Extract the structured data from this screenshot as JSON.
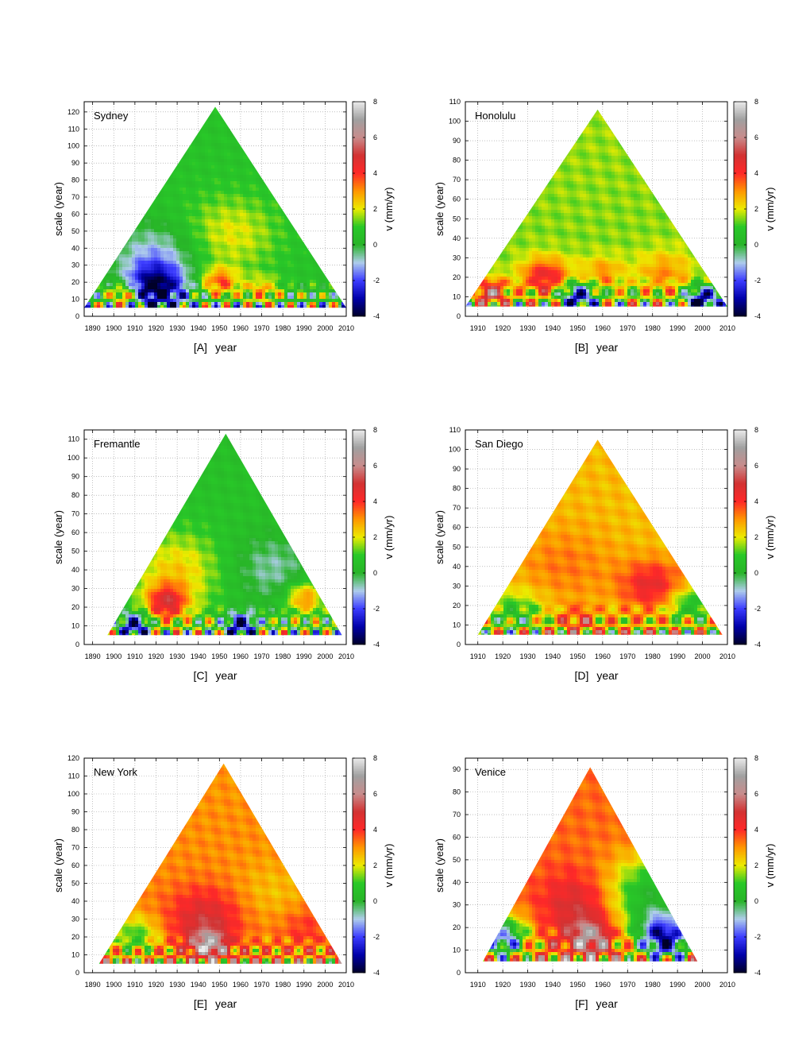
{
  "chart_data": [
    {
      "type": "heatmap",
      "panel_label": "[A]",
      "title": "Sydney",
      "xlabel": "year",
      "ylabel": "scale (year)",
      "colorbar_label": "v (mm/yr)",
      "xlim": [
        1886,
        2010
      ],
      "ylim": [
        0,
        126
      ],
      "xticks": [
        1890,
        1900,
        1910,
        1920,
        1930,
        1940,
        1950,
        1960,
        1970,
        1980,
        1990,
        2000,
        2010
      ],
      "yticks": [
        0,
        10,
        20,
        30,
        40,
        50,
        60,
        70,
        80,
        90,
        100,
        110,
        120
      ],
      "colorbar_ticks": [
        -4,
        -2,
        0,
        2,
        4,
        6,
        8
      ],
      "triangle": {
        "start_year": 1886,
        "end_year": 2010,
        "apex_year": 1948,
        "apex_scale": 123,
        "base_scale": 5
      },
      "field": {
        "base_v": 0.6,
        "upper_v": 0.7,
        "hotspots": [
          {
            "year": 1920,
            "scale": 35,
            "v": -1.2,
            "spread": 14
          },
          {
            "year": 1920,
            "scale": 15,
            "v": -3.5,
            "spread": 10
          },
          {
            "year": 1955,
            "scale": 48,
            "v": 2.0,
            "spread": 16
          },
          {
            "year": 1950,
            "scale": 20,
            "v": 3.5,
            "spread": 6
          },
          {
            "year": 1905,
            "scale": 12,
            "v": 4.0,
            "spread": 5
          },
          {
            "year": 1970,
            "scale": 15,
            "v": 2.5,
            "spread": 6
          }
        ]
      }
    },
    {
      "type": "heatmap",
      "panel_label": "[B]",
      "title": "Honolulu",
      "xlabel": "year",
      "ylabel": "scale (year)",
      "colorbar_label": "v (mm/yr)",
      "xlim": [
        1905,
        2010
      ],
      "ylim": [
        0,
        110
      ],
      "xticks": [
        1910,
        1920,
        1930,
        1940,
        1950,
        1960,
        1970,
        1980,
        1990,
        2000,
        2010
      ],
      "yticks": [
        0,
        10,
        20,
        30,
        40,
        50,
        60,
        70,
        80,
        90,
        100,
        110
      ],
      "colorbar_ticks": [
        -4,
        -2,
        0,
        2,
        4,
        6,
        8
      ],
      "triangle": {
        "start_year": 1905,
        "end_year": 2010,
        "apex_year": 1958,
        "apex_scale": 106,
        "base_scale": 5
      },
      "field": {
        "base_v": 1.4,
        "upper_v": 1.6,
        "hotspots": [
          {
            "year": 1937,
            "scale": 20,
            "v": 4.5,
            "spread": 7
          },
          {
            "year": 1915,
            "scale": 12,
            "v": 5.5,
            "spread": 5
          },
          {
            "year": 1985,
            "scale": 22,
            "v": 3.0,
            "spread": 8
          },
          {
            "year": 1960,
            "scale": 22,
            "v": 3.0,
            "spread": 6
          },
          {
            "year": 1950,
            "scale": 10,
            "v": -3.0,
            "spread": 5
          },
          {
            "year": 2000,
            "scale": 8,
            "v": -3.5,
            "spread": 5
          }
        ]
      }
    },
    {
      "type": "heatmap",
      "panel_label": "[C]",
      "title": "Fremantle",
      "xlabel": "year",
      "ylabel": "scale (year)",
      "colorbar_label": "v (mm/yr)",
      "xlim": [
        1886,
        2010
      ],
      "ylim": [
        0,
        115
      ],
      "xticks": [
        1890,
        1900,
        1910,
        1920,
        1930,
        1940,
        1950,
        1960,
        1970,
        1980,
        1990,
        2000,
        2010
      ],
      "yticks": [
        0,
        10,
        20,
        30,
        40,
        50,
        60,
        70,
        80,
        90,
        100,
        110
      ],
      "colorbar_ticks": [
        -4,
        -2,
        0,
        2,
        4,
        6,
        8
      ],
      "triangle": {
        "start_year": 1897,
        "end_year": 2008,
        "apex_year": 1953,
        "apex_scale": 113,
        "base_scale": 5
      },
      "field": {
        "base_v": 0.9,
        "upper_v": 0.5,
        "hotspots": [
          {
            "year": 1930,
            "scale": 40,
            "v": 2.5,
            "spread": 14
          },
          {
            "year": 1925,
            "scale": 22,
            "v": 4.5,
            "spread": 7
          },
          {
            "year": 1975,
            "scale": 40,
            "v": -0.5,
            "spread": 14
          },
          {
            "year": 1990,
            "scale": 25,
            "v": 3.5,
            "spread": 6
          },
          {
            "year": 1960,
            "scale": 10,
            "v": -3.0,
            "spread": 5
          },
          {
            "year": 1910,
            "scale": 10,
            "v": -3.0,
            "spread": 5
          }
        ]
      }
    },
    {
      "type": "heatmap",
      "panel_label": "[D]",
      "title": "San Diego",
      "xlabel": "year",
      "ylabel": "scale (year)",
      "colorbar_label": "v (mm/yr)",
      "xlim": [
        1905,
        2010
      ],
      "ylim": [
        0,
        110
      ],
      "xticks": [
        1910,
        1920,
        1930,
        1940,
        1950,
        1960,
        1970,
        1980,
        1990,
        2000,
        2010
      ],
      "yticks": [
        0,
        10,
        20,
        30,
        40,
        50,
        60,
        70,
        80,
        90,
        100,
        110
      ],
      "colorbar_ticks": [
        -4,
        -2,
        0,
        2,
        4,
        6,
        8
      ],
      "triangle": {
        "start_year": 1910,
        "end_year": 2008,
        "apex_year": 1958,
        "apex_scale": 105,
        "base_scale": 5
      },
      "field": {
        "base_v": 2.4,
        "upper_v": 2.6,
        "hotspots": [
          {
            "year": 1980,
            "scale": 30,
            "v": 4.5,
            "spread": 9
          },
          {
            "year": 1945,
            "scale": 40,
            "v": 3.2,
            "spread": 14
          },
          {
            "year": 1925,
            "scale": 15,
            "v": 0.5,
            "spread": 8
          },
          {
            "year": 1995,
            "scale": 20,
            "v": 0.3,
            "spread": 7
          },
          {
            "year": 1950,
            "scale": 12,
            "v": 4.0,
            "spread": 5
          }
        ]
      }
    },
    {
      "type": "heatmap",
      "panel_label": "[E]",
      "title": "New York",
      "xlabel": "year",
      "ylabel": "scale (year)",
      "colorbar_label": "v (mm/yr)",
      "xlim": [
        1886,
        2010
      ],
      "ylim": [
        0,
        120
      ],
      "xticks": [
        1890,
        1900,
        1910,
        1920,
        1930,
        1940,
        1950,
        1960,
        1970,
        1980,
        1990,
        2000,
        2010
      ],
      "yticks": [
        0,
        10,
        20,
        30,
        40,
        50,
        60,
        70,
        80,
        90,
        100,
        110,
        120
      ],
      "colorbar_ticks": [
        -4,
        -2,
        0,
        2,
        4,
        6,
        8
      ],
      "triangle": {
        "start_year": 1893,
        "end_year": 2008,
        "apex_year": 1952,
        "apex_scale": 117,
        "base_scale": 5
      },
      "field": {
        "base_v": 3.2,
        "upper_v": 3.0,
        "hotspots": [
          {
            "year": 1943,
            "scale": 30,
            "v": 5.0,
            "spread": 12
          },
          {
            "year": 1945,
            "scale": 15,
            "v": 6.5,
            "spread": 6
          },
          {
            "year": 1990,
            "scale": 25,
            "v": 4.0,
            "spread": 8
          },
          {
            "year": 1910,
            "scale": 20,
            "v": 1.0,
            "spread": 8
          },
          {
            "year": 1975,
            "scale": 45,
            "v": 2.6,
            "spread": 12
          }
        ]
      }
    },
    {
      "type": "heatmap",
      "panel_label": "[F]",
      "title": "Venice",
      "xlabel": "year",
      "ylabel": "scale (year)",
      "colorbar_label": "v (mm/yr)",
      "xlim": [
        1905,
        2010
      ],
      "ylim": [
        0,
        95
      ],
      "xticks": [
        1910,
        1920,
        1930,
        1940,
        1950,
        1960,
        1970,
        1980,
        1990,
        2000,
        2010
      ],
      "yticks": [
        0,
        10,
        20,
        30,
        40,
        50,
        60,
        70,
        80,
        90
      ],
      "colorbar_ticks": [
        -4,
        -2,
        0,
        2,
        4,
        6,
        8
      ],
      "triangle": {
        "start_year": 1912,
        "end_year": 1998,
        "apex_year": 1955,
        "apex_scale": 91,
        "base_scale": 5
      },
      "field": {
        "base_v": 3.5,
        "upper_v": 3.4,
        "hotspots": [
          {
            "year": 1978,
            "scale": 35,
            "v": 0.4,
            "spread": 12
          },
          {
            "year": 1985,
            "scale": 15,
            "v": -2.5,
            "spread": 8
          },
          {
            "year": 1920,
            "scale": 15,
            "v": -1.5,
            "spread": 7
          },
          {
            "year": 1950,
            "scale": 30,
            "v": 5.0,
            "spread": 10
          },
          {
            "year": 1955,
            "scale": 15,
            "v": 6.5,
            "spread": 6
          }
        ]
      }
    }
  ]
}
